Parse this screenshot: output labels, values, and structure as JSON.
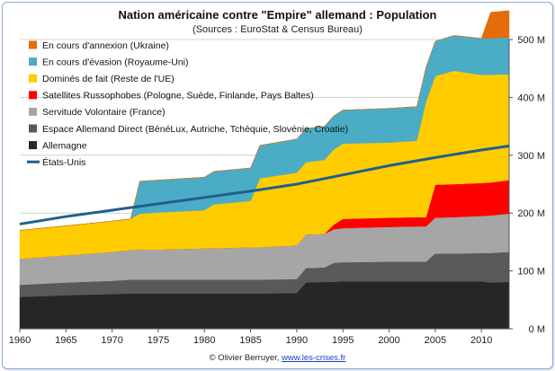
{
  "title": "Nation américaine contre \"Empire\" allemand : Population",
  "subtitle": "(Sources : EuroStat & Census Bureau)",
  "footer": {
    "credit": "© Olivier Berruyer, ",
    "link_text": "www.les-crises.fr"
  },
  "chart_data": {
    "type": "area",
    "stacked": true,
    "unit": "M",
    "xlim": [
      1960,
      2013
    ],
    "ylim": [
      0,
      500
    ],
    "x_ticks": [
      1960,
      1965,
      1970,
      1975,
      1980,
      1985,
      1990,
      1995,
      2000,
      2005,
      2010
    ],
    "y_ticks": [
      0,
      100,
      200,
      300,
      400,
      500
    ],
    "y_tick_labels": [
      "0 M",
      "100 M",
      "200 M",
      "300 M",
      "400 M",
      "500 M"
    ],
    "grid": true,
    "legend_position": "top-left",
    "x": [
      1960,
      1965,
      1970,
      1972,
      1973,
      1975,
      1980,
      1981,
      1985,
      1986,
      1990,
      1991,
      1993,
      1994,
      1995,
      2000,
      2003,
      2004,
      2005,
      2007,
      2010,
      2011,
      2013
    ],
    "series": [
      {
        "name": "Allemagne",
        "color": "#262626",
        "values": [
          55,
          58,
          60,
          61,
          61,
          61,
          61,
          61,
          61,
          61,
          62,
          80,
          81,
          81,
          82,
          82,
          82,
          82,
          82,
          82,
          82,
          80,
          81
        ]
      },
      {
        "name": "Espace Allemand Direct (BénéLux, Autriche, Tchèquie, Slovénie, Croatie)",
        "color": "#595959",
        "values": [
          21,
          22,
          23,
          24,
          24,
          24,
          24,
          24,
          24,
          24,
          24,
          25,
          25,
          33,
          33,
          34,
          34,
          34,
          48,
          48,
          49,
          51,
          52
        ]
      },
      {
        "name": "Servitude Volontaire (France)",
        "color": "#a6a6a6",
        "values": [
          45,
          47,
          50,
          51,
          52,
          52,
          54,
          54,
          56,
          56,
          58,
          58,
          58,
          58,
          59,
          60,
          61,
          61,
          62,
          63,
          64,
          65,
          66
        ]
      },
      {
        "name": "Satellites Russophobes (Pologne, Suède, Finlande, Pays Baltes)",
        "color": "#ff0000",
        "values": [
          0,
          0,
          0,
          0,
          0,
          0,
          0,
          0,
          0,
          0,
          0,
          0,
          0,
          8,
          16,
          16,
          16,
          16,
          57,
          57,
          57,
          57,
          58
        ]
      },
      {
        "name": "Dominés de fait (Reste de l'UE)",
        "color": "#ffcc00",
        "values": [
          49,
          51,
          53,
          54,
          62,
          64,
          66,
          76,
          80,
          119,
          126,
          125,
          128,
          130,
          130,
          130,
          132,
          200,
          188,
          196,
          187,
          186,
          183
        ]
      },
      {
        "name": "En cours d'évasion (Royaume-Uni)",
        "color": "#4bacc6",
        "values": [
          0,
          0,
          0,
          0,
          56,
          56,
          57,
          57,
          57,
          57,
          58,
          58,
          58,
          58,
          58,
          59,
          59,
          59,
          60,
          61,
          63,
          63,
          64
        ]
      },
      {
        "name": "En cours d'annexion (Ukraine)",
        "color": "#e46c0a",
        "values": [
          0,
          0,
          0,
          0,
          0,
          0,
          0,
          0,
          0,
          0,
          0,
          0,
          0,
          0,
          0,
          0,
          0,
          0,
          0,
          0,
          0,
          45,
          46
        ]
      }
    ],
    "line_series": {
      "name": "États-Unis",
      "color": "#1f5f8e",
      "x": [
        1960,
        1965,
        1970,
        1975,
        1980,
        1985,
        1990,
        1995,
        2000,
        2005,
        2010,
        2013
      ],
      "values": [
        181,
        194,
        205,
        216,
        227,
        238,
        250,
        266,
        282,
        296,
        309,
        316
      ]
    }
  }
}
